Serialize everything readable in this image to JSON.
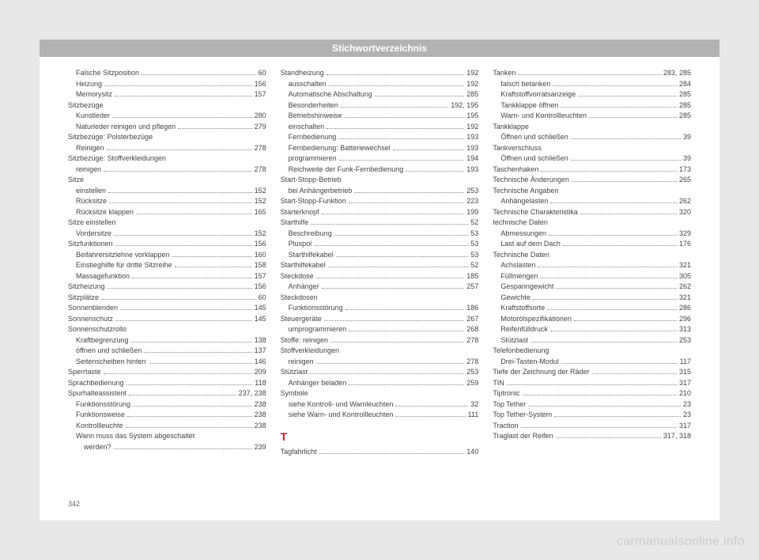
{
  "header_title": "Stichwortverzeichnis",
  "page_number": "342",
  "watermark": "carmanualsonline.info",
  "entries": [
    {
      "text": "Falsche Sitzposition",
      "page": "60",
      "sub": true
    },
    {
      "text": "Heizung",
      "page": "156",
      "sub": true
    },
    {
      "text": "Memorysitz",
      "page": "157",
      "sub": true
    },
    {
      "text": "Sitzbezüge",
      "page": "",
      "sub": false,
      "nopage": true
    },
    {
      "text": "Kunstleder",
      "page": "280",
      "sub": true
    },
    {
      "text": "Naturleder reinigen und pflegen",
      "page": "279",
      "sub": true
    },
    {
      "text": "Sitzbezüge: Polsterbezüge",
      "page": "",
      "sub": false,
      "nopage": true
    },
    {
      "text": "Reinigen",
      "page": "278",
      "sub": true
    },
    {
      "text": "Sitzbezüge: Stoffverkleidungen",
      "page": "",
      "sub": false,
      "nopage": true
    },
    {
      "text": "reinigen",
      "page": "278",
      "sub": true
    },
    {
      "text": "Sitze",
      "page": "",
      "sub": false,
      "nopage": true
    },
    {
      "text": "einstellen",
      "page": "152",
      "sub": true
    },
    {
      "text": "Rücksitze",
      "page": "152",
      "sub": true
    },
    {
      "text": "Rücksitze klappen",
      "page": "165",
      "sub": true
    },
    {
      "text": "Sitze einstellen",
      "page": "",
      "sub": false,
      "nopage": true
    },
    {
      "text": "Vordersitze",
      "page": "152",
      "sub": true
    },
    {
      "text": "Sitzfunktionen",
      "page": "156",
      "sub": false
    },
    {
      "text": "Beifahrersitzlehne vorklappen",
      "page": "160",
      "sub": true
    },
    {
      "text": "Einstieghilfe für dritte Sitzreihe",
      "page": "158",
      "sub": true
    },
    {
      "text": "Massagefunktion",
      "page": "157",
      "sub": true
    },
    {
      "text": "Sitzheizung",
      "page": "156",
      "sub": false
    },
    {
      "text": "Sitzplätze",
      "page": "60",
      "sub": false
    },
    {
      "text": "Sonnenblenden",
      "page": "145",
      "sub": false
    },
    {
      "text": "Sonnenschutz",
      "page": "145",
      "sub": false
    },
    {
      "text": "Sonnenschutzrollo",
      "page": "",
      "sub": false,
      "nopage": true
    },
    {
      "text": "Kraftbegrenzung",
      "page": "138",
      "sub": true
    },
    {
      "text": "öffnen und schließen",
      "page": "137",
      "sub": true
    },
    {
      "text": "Seitenscheiben hinten",
      "page": "146",
      "sub": true
    },
    {
      "text": "Sperrtaste",
      "page": "209",
      "sub": false
    },
    {
      "text": "Sprachbedienung",
      "page": "118",
      "sub": false
    },
    {
      "text": "Spurhalteassistent",
      "page": "237, 238",
      "sub": false
    },
    {
      "text": "Funktionsstörung",
      "page": "238",
      "sub": true
    },
    {
      "text": "Funktionsweise",
      "page": "238",
      "sub": true
    },
    {
      "text": "Kontrollleuchte",
      "page": "238",
      "sub": true
    },
    {
      "text": "Wann muss das System abgeschaltet",
      "page": "",
      "sub": true,
      "nopage": true
    },
    {
      "text": "werden?",
      "page": "239",
      "sub": true,
      "extraindent": true
    },
    {
      "text": "Standheizung",
      "page": "192",
      "sub": false
    },
    {
      "text": "ausschalten",
      "page": "192",
      "sub": true
    },
    {
      "text": "Automatische Abschaltung",
      "page": "285",
      "sub": true
    },
    {
      "text": "Besonderheiten",
      "page": "192, 195",
      "sub": true
    },
    {
      "text": "Betriebshinweise",
      "page": "195",
      "sub": true
    },
    {
      "text": "einschalten",
      "page": "192",
      "sub": true
    },
    {
      "text": "Fernbedienung",
      "page": "193",
      "sub": true
    },
    {
      "text": "Fernbedienung: Batteriewechsel",
      "page": "193",
      "sub": true
    },
    {
      "text": "programmieren",
      "page": "194",
      "sub": true
    },
    {
      "text": "Reichweite der Funk-Fernbedienung",
      "page": "193",
      "sub": true
    },
    {
      "text": "Start-Stopp-Betrieb",
      "page": "",
      "sub": false,
      "nopage": true
    },
    {
      "text": "bei Anhängerbetrieb",
      "page": "253",
      "sub": true
    },
    {
      "text": "Start-Stopp-Funktion",
      "page": "223",
      "sub": false
    },
    {
      "text": "Starterknopf",
      "page": "199",
      "sub": false
    },
    {
      "text": "Starthilfe",
      "page": "52",
      "sub": false
    },
    {
      "text": "Beschreibung",
      "page": "53",
      "sub": true
    },
    {
      "text": "Pluspol",
      "page": "53",
      "sub": true
    },
    {
      "text": "Starthilfekabel",
      "page": "53",
      "sub": true
    },
    {
      "text": "Starthilfekabel",
      "page": "52",
      "sub": false
    },
    {
      "text": "Steckdose",
      "page": "185",
      "sub": false
    },
    {
      "text": "Anhänger",
      "page": "257",
      "sub": true
    },
    {
      "text": "Steckdosen",
      "page": "",
      "sub": false,
      "nopage": true
    },
    {
      "text": "Funktionsstörung",
      "page": "186",
      "sub": true
    },
    {
      "text": "Steuergeräte",
      "page": "267",
      "sub": false
    },
    {
      "text": "umprogrammieren",
      "page": "268",
      "sub": true
    },
    {
      "text": "Stoffe: reinigen",
      "page": "278",
      "sub": false
    },
    {
      "text": "Stoffverkleidungen",
      "page": "",
      "sub": false,
      "nopage": true
    },
    {
      "text": "reinigen",
      "page": "278",
      "sub": true
    },
    {
      "text": "Stützlast",
      "page": "253",
      "sub": false
    },
    {
      "text": "Anhänger beladen",
      "page": "259",
      "sub": true
    },
    {
      "text": "Symbole",
      "page": "",
      "sub": false,
      "nopage": true
    },
    {
      "text": "siehe Kontroll- und Warnleuchten",
      "page": "32",
      "sub": true
    },
    {
      "text": "siehe Warn- und Kontrollleuchten",
      "page": "111",
      "sub": true
    },
    {
      "letter": "T"
    },
    {
      "text": "Tagfahrlicht",
      "page": "140",
      "sub": false
    },
    {
      "text": "Tanken",
      "page": "283, 285",
      "sub": false
    },
    {
      "text": "falsch betanken",
      "page": "284",
      "sub": true
    },
    {
      "text": "Kraftstoffvorratsanzeige",
      "page": "285",
      "sub": true
    },
    {
      "text": "Tankklappe öffnen",
      "page": "285",
      "sub": true
    },
    {
      "text": "Warn- und Kontrollleuchten",
      "page": "285",
      "sub": true
    },
    {
      "text": "Tankklappe",
      "page": "",
      "sub": false,
      "nopage": true
    },
    {
      "text": "Öffnen und schließen",
      "page": "39",
      "sub": true
    },
    {
      "text": "Tankverschluss",
      "page": "",
      "sub": false,
      "nopage": true
    },
    {
      "text": "Öffnen und schließen",
      "page": "39",
      "sub": true
    },
    {
      "text": "Taschenhaken",
      "page": "173",
      "sub": false
    },
    {
      "text": "Technische Änderungen",
      "page": "265",
      "sub": false
    },
    {
      "text": "Technische Angaben",
      "page": "",
      "sub": false,
      "nopage": true
    },
    {
      "text": "Anhängelasten",
      "page": "262",
      "sub": true
    },
    {
      "text": "Technische Charakteristika",
      "page": "320",
      "sub": false
    },
    {
      "text": "technische Daten",
      "page": "",
      "sub": false,
      "nopage": true
    },
    {
      "text": "Abmessungen",
      "page": "329",
      "sub": true
    },
    {
      "text": "Last auf dem Dach",
      "page": "176",
      "sub": true
    },
    {
      "text": "Technische Daten",
      "page": "",
      "sub": false,
      "nopage": true
    },
    {
      "text": "Achslasten",
      "page": "321",
      "sub": true
    },
    {
      "text": "Füllmengen",
      "page": "305",
      "sub": true
    },
    {
      "text": "Gespanngewicht",
      "page": "262",
      "sub": true
    },
    {
      "text": "Gewichte",
      "page": "321",
      "sub": true
    },
    {
      "text": "Kraftstoffsorte",
      "page": "286",
      "sub": true
    },
    {
      "text": "Motorölspezifikationen",
      "page": "296",
      "sub": true
    },
    {
      "text": "Reifenfülldruck",
      "page": "313",
      "sub": true
    },
    {
      "text": "Stützlast",
      "page": "253",
      "sub": true
    },
    {
      "text": "Telefonbedienung",
      "page": "",
      "sub": false,
      "nopage": true
    },
    {
      "text": "Drei-Tasten-Modul",
      "page": "117",
      "sub": true
    },
    {
      "text": "Tiefe der Zeichnung der Räder",
      "page": "315",
      "sub": false
    },
    {
      "text": "TIN",
      "page": "317",
      "sub": false
    },
    {
      "text": "Tiptronic",
      "page": "210",
      "sub": false
    },
    {
      "text": "Top Tether",
      "page": "23",
      "sub": false
    },
    {
      "text": "Top Tether-System",
      "page": "23",
      "sub": false
    },
    {
      "text": "Traction",
      "page": "317",
      "sub": false
    },
    {
      "text": "Traglast der Reifen",
      "page": "317, 318",
      "sub": false
    }
  ]
}
